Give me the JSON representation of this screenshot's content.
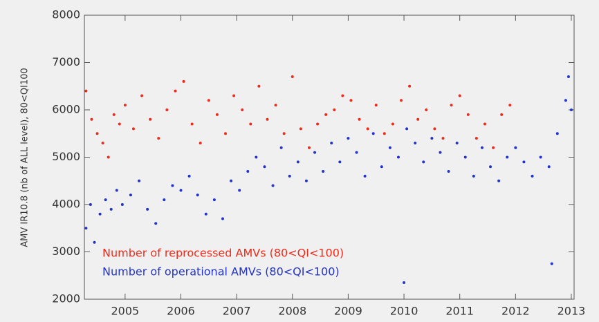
{
  "chart_data": {
    "type": "scatter",
    "ylabel": "AMV IR10.8 (nb of ALL level), 80<QI100",
    "xlim": [
      2004.27,
      2013.05
    ],
    "ylim": [
      2000,
      8000
    ],
    "xticks": [
      2005,
      2006,
      2007,
      2008,
      2009,
      2010,
      2011,
      2012,
      2013
    ],
    "yticks": [
      2000,
      3000,
      4000,
      5000,
      6000,
      7000,
      8000
    ],
    "legend": "lower left",
    "series": [
      {
        "name": "Number of reprocessed AMVs (80<QI<100)",
        "color": "#ee2a1a",
        "x": [
          2004.3,
          2004.4,
          2004.5,
          2004.6,
          2004.7,
          2004.8,
          2004.9,
          2005.0,
          2005.15,
          2005.3,
          2005.45,
          2005.6,
          2005.75,
          2005.9,
          2006.05,
          2006.2,
          2006.35,
          2006.5,
          2006.65,
          2006.8,
          2006.95,
          2007.1,
          2007.25,
          2007.4,
          2007.55,
          2007.7,
          2007.85,
          2008.0,
          2008.15,
          2008.3,
          2008.45,
          2008.6,
          2008.75,
          2008.9,
          2009.05,
          2009.2,
          2009.35,
          2009.5,
          2009.65,
          2009.8,
          2009.95,
          2010.1,
          2010.25,
          2010.4,
          2010.55,
          2010.7,
          2010.85,
          2011.0,
          2011.15,
          2011.3,
          2011.45,
          2011.6,
          2011.75,
          2011.9
        ],
        "values": [
          6400,
          5800,
          5500,
          5300,
          5000,
          5900,
          5700,
          6100,
          5600,
          6300,
          5800,
          5400,
          6000,
          6400,
          6600,
          5700,
          5300,
          6200,
          5900,
          5500,
          6300,
          6000,
          5700,
          6500,
          5800,
          6100,
          5500,
          6700,
          5600,
          5200,
          5700,
          5900,
          6000,
          6300,
          6200,
          5800,
          5600,
          6100,
          5500,
          5700,
          6200,
          6500,
          5800,
          6000,
          5600,
          5400,
          6100,
          6300,
          5900,
          5400,
          5700,
          5200,
          5900,
          6100
        ]
      },
      {
        "name": "Number of operational AMVs (80<QI<100)",
        "color": "#2233cc",
        "x": [
          2004.3,
          2004.38,
          2004.45,
          2004.55,
          2004.65,
          2004.75,
          2004.85,
          2004.95,
          2005.1,
          2005.25,
          2005.4,
          2005.55,
          2005.7,
          2005.85,
          2006.0,
          2006.15,
          2006.3,
          2006.45,
          2006.6,
          2006.75,
          2006.9,
          2007.05,
          2007.2,
          2007.35,
          2007.5,
          2007.65,
          2007.8,
          2007.95,
          2008.1,
          2008.25,
          2008.4,
          2008.55,
          2008.7,
          2008.85,
          2009.0,
          2009.15,
          2009.3,
          2009.45,
          2009.6,
          2009.75,
          2009.9,
          2010.05,
          2010.2,
          2010.35,
          2010.5,
          2010.65,
          2010.8,
          2010.95,
          2011.1,
          2011.25,
          2011.4,
          2011.55,
          2011.7,
          2011.85,
          2012.0,
          2012.15,
          2012.3,
          2012.45,
          2012.6,
          2012.75,
          2012.9,
          2013.0,
          2012.95,
          2010.0,
          2012.65
        ],
        "values": [
          3500,
          4000,
          3200,
          3800,
          4100,
          3900,
          4300,
          4000,
          4200,
          4500,
          3900,
          3600,
          4100,
          4400,
          4300,
          4600,
          4200,
          3800,
          4100,
          3700,
          4500,
          4300,
          4700,
          5000,
          4800,
          4400,
          5200,
          4600,
          4900,
          4500,
          5100,
          4700,
          5300,
          4900,
          5400,
          5100,
          4600,
          5500,
          4800,
          5200,
          5000,
          5600,
          5300,
          4900,
          5400,
          5100,
          4700,
          5300,
          5000,
          4600,
          5200,
          4800,
          4500,
          5000,
          5200,
          4900,
          4600,
          5000,
          4800,
          5500,
          6200,
          6000,
          6700,
          2350,
          2750
        ]
      }
    ]
  }
}
